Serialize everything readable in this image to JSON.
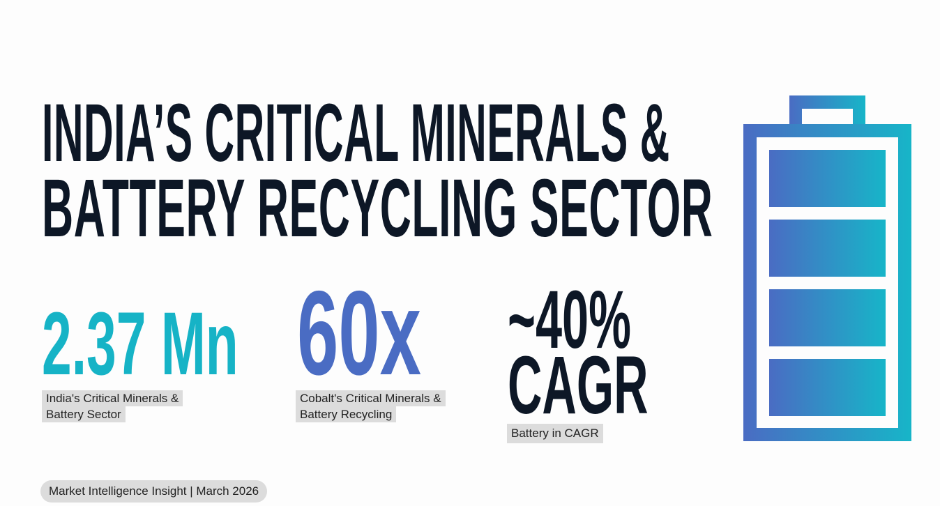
{
  "title": {
    "line1": "INDIA’S CRITICAL MINERALS &",
    "line2": "BATTERY RECYCLING SECTOR"
  },
  "stats": [
    {
      "value": "2.37 Mn",
      "label_line1": "India's Critical Minerals &",
      "label_line2": "Battery Sector",
      "color": "#16b3c6"
    },
    {
      "value": "60x",
      "label_line1": "Cobalt's Critical Minerals &",
      "label_line2": "Battery Recycling",
      "color": "#4a6cc3"
    },
    {
      "value_line1": "~40%",
      "value_line2": "CAGR",
      "label": "Battery in CAGR",
      "color": "#0d1726"
    }
  ],
  "footer": "Market Intelligence Insight | March 2026",
  "battery_icon": {
    "name": "battery-full-icon",
    "cells_filled": 4,
    "cells_total": 4,
    "gradient": [
      "#4a6cc3",
      "#17b5c8"
    ]
  }
}
